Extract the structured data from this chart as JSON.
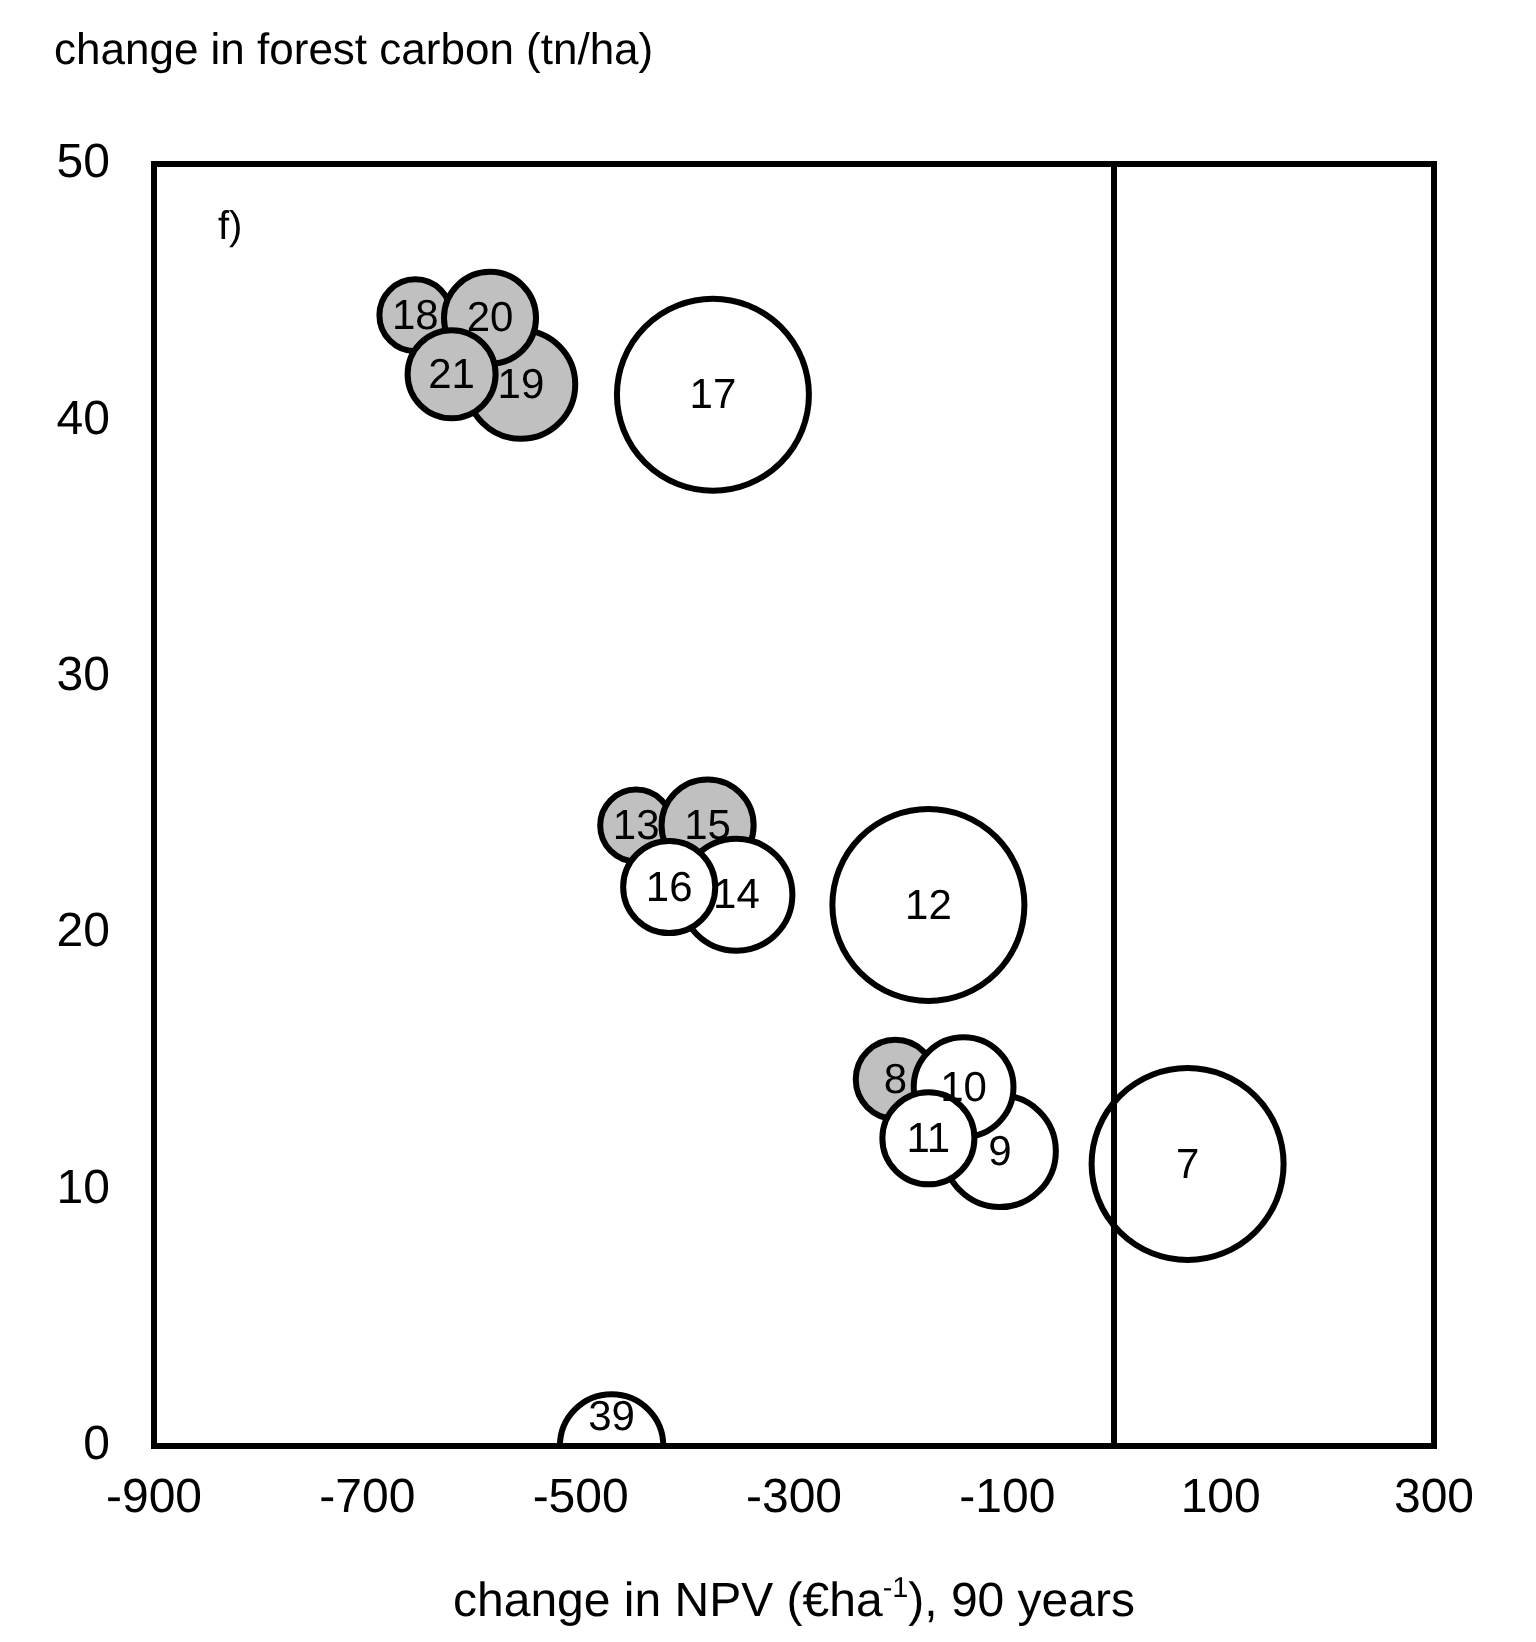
{
  "chart_data": {
    "type": "bubble",
    "ylabel": "change in forest carbon (tn/ha)",
    "xlabel": "change in NPV (€ha$^{-1}$), 90 years",
    "annotations": [
      "f)",
      {
        "text": "18",
        "x": -655,
        "y": 44.1
      },
      {
        "text": "19",
        "x": -556,
        "y": 41.4
      },
      {
        "text": "20",
        "x": -585,
        "y": 44.0
      },
      {
        "text": "21",
        "x": -621,
        "y": 41.8
      },
      {
        "text": "13",
        "x": -448,
        "y": 24.2
      },
      {
        "text": "15",
        "x": -381,
        "y": 24.2
      },
      {
        "text": "8",
        "x": -205,
        "y": 14.3
      },
      {
        "text": "17",
        "x": -376,
        "y": 41.0
      },
      {
        "text": "14",
        "x": -354,
        "y": 21.5
      },
      {
        "text": "16",
        "x": -417,
        "y": 21.8
      },
      {
        "text": "12",
        "x": -174,
        "y": 21.1
      },
      {
        "text": "9",
        "x": -107,
        "y": 11.5
      },
      {
        "text": "10",
        "x": -141,
        "y": 14.0
      },
      {
        "text": "11",
        "x": -174,
        "y": 12.0
      },
      {
        "text": "7",
        "x": 69,
        "y": 11.0
      },
      {
        "text": "39",
        "x": -471,
        "y": 0
      }
    ],
    "xlim": [
      -900,
      300
    ],
    "xticks": [
      -900,
      -700,
      -500,
      -300,
      -100,
      100,
      300
    ],
    "ylim": [
      0,
      50
    ],
    "yticks": [
      0,
      10,
      20,
      30,
      40,
      50
    ],
    "grid": false,
    "legend": false,
    "ref_lines": [
      {
        "axis": "x",
        "value": 0,
        "color": "#000000"
      }
    ],
    "series": [
      {
        "color": "#c0c0c0",
        "x": [
          -655,
          -556,
          -585,
          -621,
          -448,
          -381,
          -205
        ],
        "values": [
          44.1,
          41.4,
          44.0,
          41.8,
          24.2,
          24.2,
          14.3
        ],
        "sizes": [
          0.14,
          0.32,
          0.23,
          0.21,
          0.14,
          0.23,
          0.17
        ]
      },
      {
        "color": "#ffffff",
        "x": [
          -376,
          -354,
          -417,
          -174,
          -107,
          -141,
          -174,
          69,
          -471
        ],
        "values": [
          41.0,
          21.5,
          21.8,
          21.1,
          11.5,
          14.0,
          12.0,
          11.0,
          0
        ],
        "sizes": [
          1,
          0.34,
          0.23,
          1,
          0.34,
          0.27,
          0.23,
          1,
          0.29
        ]
      }
    ]
  }
}
